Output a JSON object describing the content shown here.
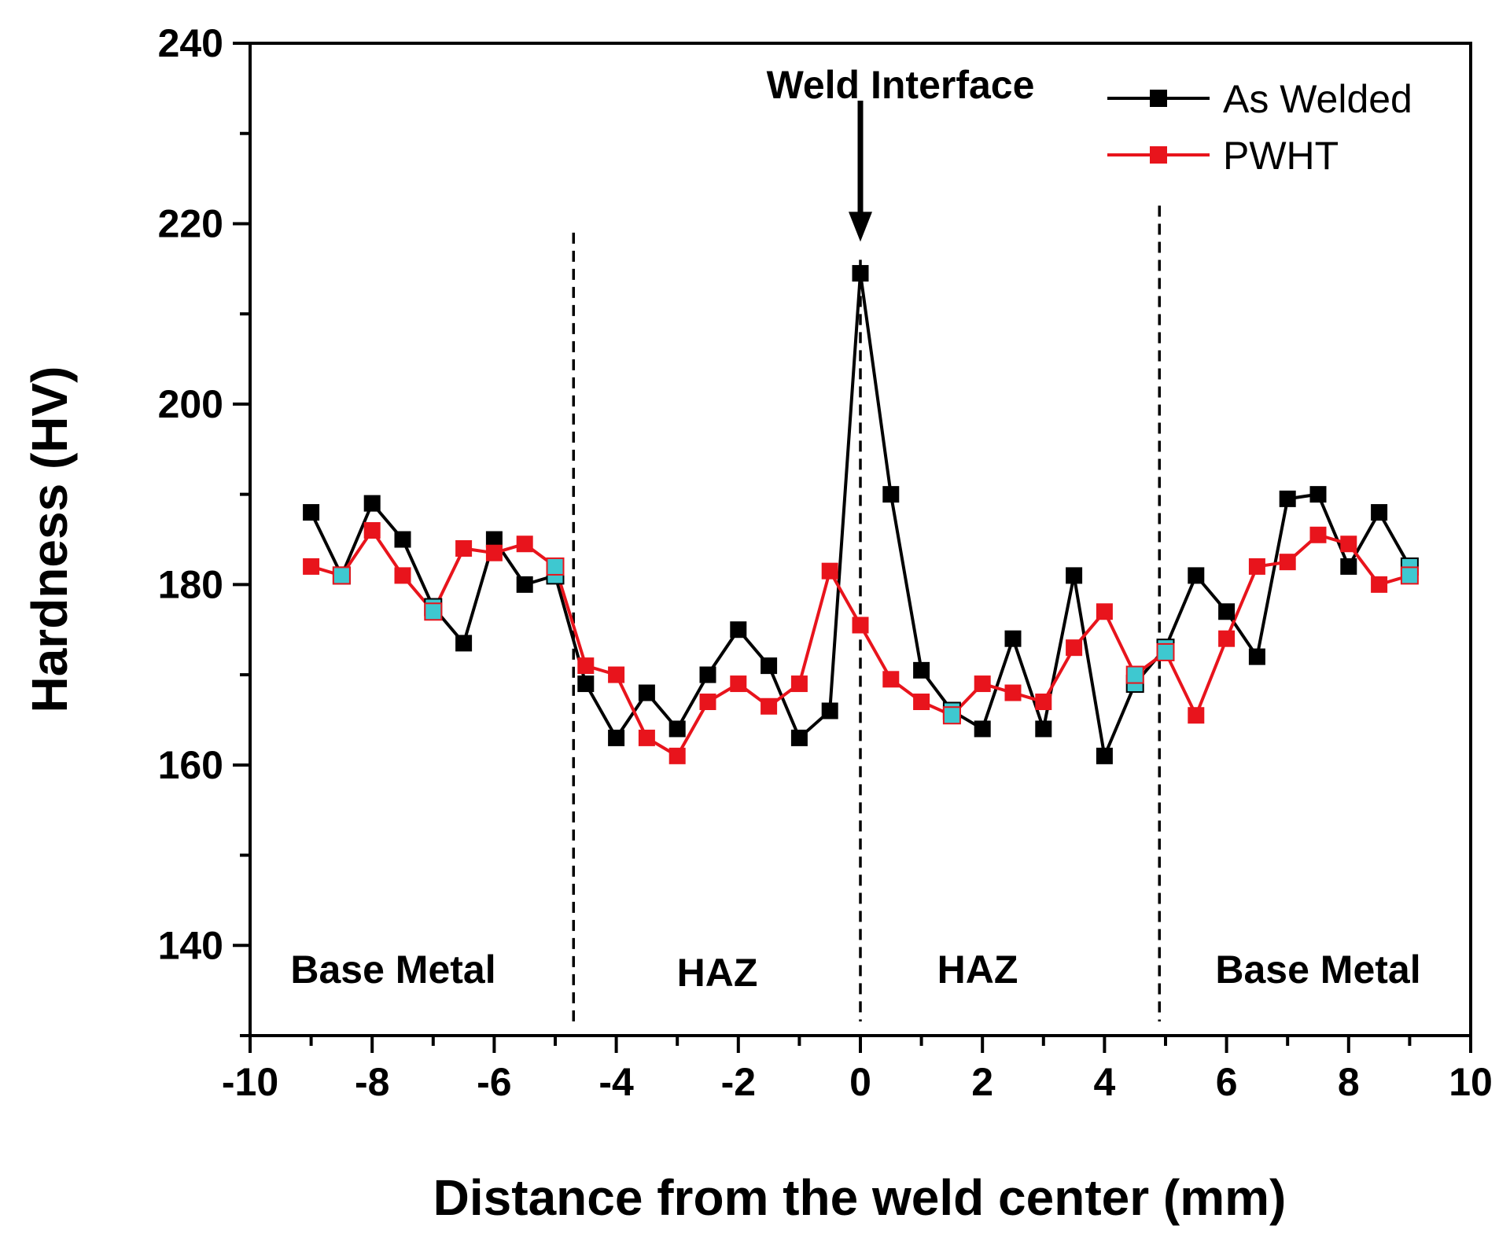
{
  "chart_data": {
    "type": "line",
    "title": "",
    "xlabel": "Distance from the weld center (mm)",
    "ylabel": "Hardness (HV)",
    "xlim": [
      -10,
      10
    ],
    "ylim": [
      130,
      240
    ],
    "xticks": [
      -10,
      -8,
      -6,
      -4,
      -2,
      0,
      2,
      4,
      6,
      8,
      10
    ],
    "yticks": [
      140,
      160,
      180,
      200,
      220,
      240
    ],
    "x_tick_labels": [
      "-10",
      "-8",
      "-6",
      "-4",
      "-2",
      "0",
      "2",
      "4",
      "6",
      "8",
      "10"
    ],
    "y_tick_labels": [
      "140",
      "160",
      "180",
      "200",
      "220",
      "240"
    ],
    "grid": false,
    "legend_position": "top-right",
    "x": [
      -9,
      -8.5,
      -8,
      -7.5,
      -7,
      -6.5,
      -6,
      -5.5,
      -5,
      -4.5,
      -4,
      -3.5,
      -3,
      -2.5,
      -2,
      -1.5,
      -1,
      -0.5,
      0,
      0.5,
      1,
      1.5,
      2,
      2.5,
      3,
      3.5,
      4,
      4.5,
      5,
      5.5,
      6,
      6.5,
      7,
      7.5,
      8,
      8.5,
      9
    ],
    "series": [
      {
        "name": "As Welded",
        "color": "#000000",
        "values": [
          188,
          181,
          189,
          185,
          177.5,
          173.5,
          185,
          180,
          181,
          169,
          163,
          168,
          164,
          170,
          175,
          171,
          163,
          166,
          214.5,
          190,
          170.5,
          166,
          164,
          174,
          164,
          181,
          161,
          169,
          173,
          181,
          177,
          172,
          189.5,
          190,
          182,
          188,
          182
        ]
      },
      {
        "name": "PWHT",
        "color": "#e8141c",
        "values": [
          182,
          181,
          186,
          181,
          177,
          184,
          183.5,
          184.5,
          182,
          171,
          170,
          163,
          161,
          167,
          169,
          166.5,
          169,
          181.5,
          175.5,
          169.5,
          167,
          165.5,
          169,
          168,
          167,
          173,
          177,
          170,
          172.5,
          165.5,
          174,
          182,
          182.5,
          185.5,
          184.5,
          180,
          181
        ]
      }
    ],
    "overlap_marker_color": "#3ec8d0",
    "vertical_dividers": [
      -4.7,
      0,
      4.9
    ],
    "region_labels": [
      "Base Metal",
      "HAZ",
      "HAZ",
      "Base Metal"
    ],
    "annotation": {
      "text": "Weld Interface",
      "x": 0,
      "y": 218
    }
  }
}
